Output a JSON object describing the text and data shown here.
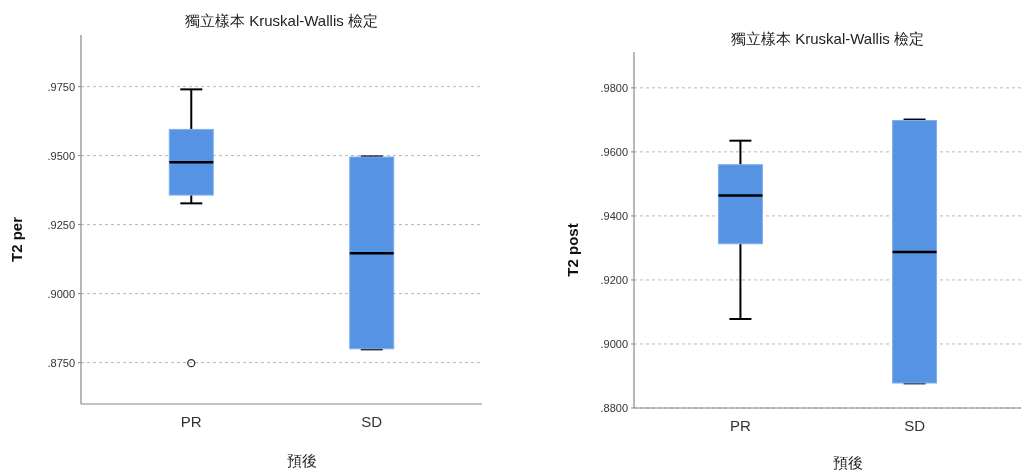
{
  "chart_data": [
    {
      "type": "box",
      "title": "獨立樣本 Kruskal-Wallis 檢定",
      "xlabel": "預後",
      "ylabel": "T2 per",
      "categories": [
        "PR",
        "SD"
      ],
      "series": [
        {
          "color": "#5694e3",
          "boxes": [
            {
              "low": 0.9327,
              "q1": 0.9357,
              "median": 0.9476,
              "q3": 0.9595,
              "high": 0.974,
              "outliers": [
                0.8748
              ]
            },
            {
              "low": 0.8798,
              "q1": 0.88,
              "median": 0.9146,
              "q3": 0.9495,
              "high": 0.9497
            }
          ]
        }
      ],
      "ylim": [
        0.86,
        0.9937
      ],
      "yticks": [
        {
          "value": 0.875,
          "label": ".8750"
        },
        {
          "value": 0.9,
          "label": ".9000"
        },
        {
          "value": 0.925,
          "label": ".9250"
        },
        {
          "value": 0.95,
          "label": ".9500"
        },
        {
          "value": 0.975,
          "label": ".9750"
        }
      ],
      "grid": "y"
    },
    {
      "type": "box",
      "title": "獨立樣本 Kruskal-Wallis 檢定",
      "xlabel": "預後",
      "ylabel": "T2 post",
      "categories": [
        "PR",
        "SD"
      ],
      "series": [
        {
          "color": "#5694e3",
          "boxes": [
            {
              "low": 0.9078,
              "q1": 0.9313,
              "median": 0.9464,
              "q3": 0.956,
              "high": 0.9635
            },
            {
              "low": 0.8877,
              "q1": 0.8878,
              "median": 0.9287,
              "q3": 0.9698,
              "high": 0.9701
            }
          ]
        }
      ],
      "ylim": [
        0.88,
        0.9912
      ],
      "yticks": [
        {
          "value": 0.88,
          "label": ".8800"
        },
        {
          "value": 0.9,
          "label": ".9000"
        },
        {
          "value": 0.92,
          "label": ".9200"
        },
        {
          "value": 0.94,
          "label": ".9400"
        },
        {
          "value": 0.96,
          "label": ".9600"
        },
        {
          "value": 0.98,
          "label": ".9800"
        }
      ],
      "grid": "y"
    }
  ]
}
